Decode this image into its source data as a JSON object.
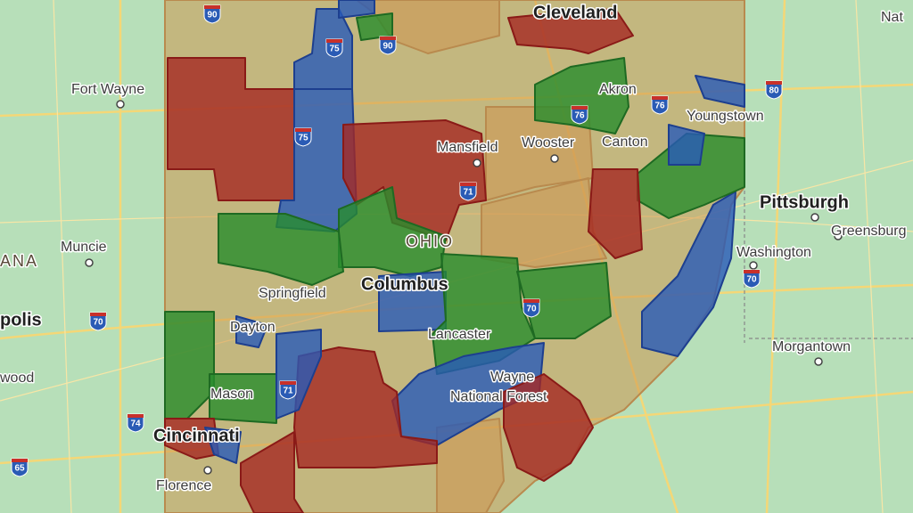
{
  "places": [
    "Fort Wayne",
    "Muncie",
    "ANA",
    "polis",
    "wood",
    "Cincinnati",
    "Florence",
    "Mason",
    "Dayton",
    "Springfield",
    "Columbus",
    "OHIO",
    "Lancaster",
    "Wayne",
    "National Forest",
    "Mansfield",
    "Wooster",
    "Akron",
    "Canton",
    "Youngstown",
    "Cleveland",
    "Pittsburgh",
    "Washington",
    "Greensburg",
    "Morgantown",
    "Nat"
  ],
  "shields": [
    90,
    90,
    75,
    75,
    71,
    71,
    70,
    70,
    70,
    80,
    74,
    65,
    76,
    76
  ]
}
